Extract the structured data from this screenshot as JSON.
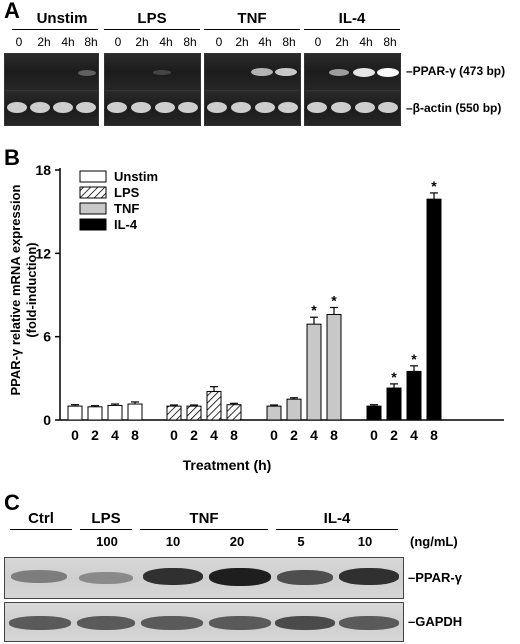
{
  "panel_a": {
    "letter": "A",
    "groups": [
      "Unstim",
      "LPS",
      "TNF",
      "IL-4"
    ],
    "lane_labels": [
      "0",
      "2h",
      "4h",
      "8h"
    ],
    "band_labels": [
      "–PPAR-γ (473 bp)",
      "–β-actin (550 bp)"
    ]
  },
  "panel_b": {
    "letter": "B"
  },
  "panel_c": {
    "letter": "C",
    "groups": [
      "Ctrl",
      "LPS",
      "TNF",
      "IL-4"
    ],
    "concentrations": [
      "100",
      "10",
      "20",
      "5",
      "10"
    ],
    "unit": "(ng/mL)",
    "band_labels": [
      "–PPAR-γ",
      "–GAPDH"
    ]
  },
  "chart_data": {
    "type": "bar",
    "title": "",
    "xlabel": "Treatment (h)",
    "ylabel": "PPAR-γ relative mRNA expression (fold-induction)",
    "ylim": [
      0,
      18
    ],
    "yticks": [
      "0",
      "6",
      "12",
      "18"
    ],
    "categories": [
      "0",
      "2",
      "4",
      "8"
    ],
    "legend_position": "top-left",
    "significance_marker": "*",
    "series": [
      {
        "name": "Unstim",
        "fill": "#ffffff",
        "values": [
          1.0,
          0.95,
          1.05,
          1.15
        ],
        "errors": [
          0.1,
          0.08,
          0.1,
          0.15
        ],
        "significant": [
          false,
          false,
          false,
          false
        ]
      },
      {
        "name": "LPS",
        "fill": "hatch",
        "values": [
          1.0,
          1.0,
          2.05,
          1.1
        ],
        "errors": [
          0.08,
          0.08,
          0.35,
          0.1
        ],
        "significant": [
          false,
          false,
          false,
          false
        ]
      },
      {
        "name": "TNF",
        "fill": "#c8c8c8",
        "values": [
          1.0,
          1.5,
          6.9,
          7.6
        ],
        "errors": [
          0.08,
          0.1,
          0.5,
          0.5
        ],
        "significant": [
          false,
          false,
          true,
          true
        ]
      },
      {
        "name": "IL-4",
        "fill": "#000000",
        "values": [
          1.0,
          2.3,
          3.5,
          15.9
        ],
        "errors": [
          0.1,
          0.3,
          0.4,
          0.45
        ],
        "significant": [
          false,
          true,
          true,
          true
        ]
      }
    ]
  }
}
